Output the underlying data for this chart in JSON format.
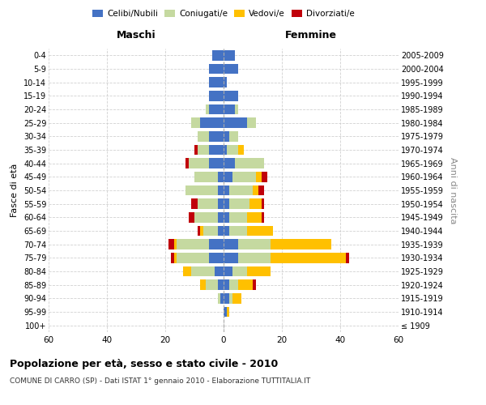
{
  "age_groups": [
    "100+",
    "95-99",
    "90-94",
    "85-89",
    "80-84",
    "75-79",
    "70-74",
    "65-69",
    "60-64",
    "55-59",
    "50-54",
    "45-49",
    "40-44",
    "35-39",
    "30-34",
    "25-29",
    "20-24",
    "15-19",
    "10-14",
    "5-9",
    "0-4"
  ],
  "birth_years": [
    "≤ 1909",
    "1910-1914",
    "1915-1919",
    "1920-1924",
    "1925-1929",
    "1930-1934",
    "1935-1939",
    "1940-1944",
    "1945-1949",
    "1950-1954",
    "1955-1959",
    "1960-1964",
    "1965-1969",
    "1970-1974",
    "1975-1979",
    "1980-1984",
    "1985-1989",
    "1990-1994",
    "1995-1999",
    "2000-2004",
    "2005-2009"
  ],
  "maschi": {
    "celibi": [
      0,
      0,
      1,
      2,
      3,
      5,
      5,
      2,
      2,
      2,
      2,
      2,
      5,
      5,
      5,
      8,
      5,
      5,
      5,
      5,
      4
    ],
    "coniugati": [
      0,
      0,
      1,
      4,
      8,
      11,
      11,
      5,
      8,
      7,
      11,
      8,
      7,
      4,
      4,
      3,
      1,
      0,
      0,
      0,
      0
    ],
    "vedovi": [
      0,
      0,
      0,
      2,
      3,
      1,
      1,
      1,
      0,
      0,
      0,
      0,
      0,
      0,
      0,
      0,
      0,
      0,
      0,
      0,
      0
    ],
    "divorziati": [
      0,
      0,
      0,
      0,
      0,
      1,
      2,
      1,
      2,
      2,
      0,
      0,
      1,
      1,
      0,
      0,
      0,
      0,
      0,
      0,
      0
    ]
  },
  "femmine": {
    "nubili": [
      0,
      1,
      2,
      2,
      3,
      5,
      5,
      2,
      2,
      2,
      2,
      3,
      4,
      1,
      2,
      8,
      4,
      5,
      1,
      5,
      4
    ],
    "coniugate": [
      0,
      0,
      1,
      3,
      5,
      11,
      11,
      6,
      6,
      7,
      8,
      8,
      10,
      4,
      3,
      3,
      1,
      0,
      0,
      0,
      0
    ],
    "vedove": [
      0,
      1,
      3,
      5,
      8,
      26,
      21,
      9,
      5,
      4,
      2,
      2,
      0,
      2,
      0,
      0,
      0,
      0,
      0,
      0,
      0
    ],
    "divorziate": [
      0,
      0,
      0,
      1,
      0,
      1,
      0,
      0,
      1,
      1,
      2,
      2,
      0,
      0,
      0,
      0,
      0,
      0,
      0,
      0,
      0
    ]
  },
  "colors": {
    "celibi": "#4472c4",
    "coniugati": "#c5d9a0",
    "vedovi": "#ffc000",
    "divorziati": "#c0000a"
  },
  "xlim": 60,
  "title": "Popolazione per età, sesso e stato civile - 2010",
  "subtitle": "COMUNE DI CARRO (SP) - Dati ISTAT 1° gennaio 2010 - Elaborazione TUTTITALIA.IT",
  "ylabel_left": "Fasce di età",
  "ylabel_right": "Anni di nascita",
  "xlabel_left": "Maschi",
  "xlabel_right": "Femmine",
  "bg_color": "#ffffff",
  "grid_color": "#cccccc"
}
